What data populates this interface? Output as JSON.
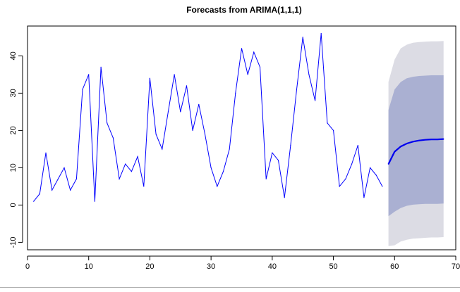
{
  "chart_data": {
    "type": "line",
    "title": "Forecasts from ARIMA(1,1,1)",
    "xlabel": "",
    "ylabel": "",
    "xlim": [
      0,
      70
    ],
    "ylim": [
      -12,
      48
    ],
    "x_ticks": [
      0,
      10,
      20,
      30,
      40,
      50,
      60,
      70
    ],
    "y_ticks": [
      -10,
      0,
      10,
      20,
      30,
      40
    ],
    "grid": false,
    "legend": "none",
    "colors": {
      "observed": "#0000ff",
      "forecast": "#0000ee",
      "band_95": "#dcdce4",
      "band_80": "#aab0d2"
    },
    "series": [
      {
        "x": [
          1,
          2,
          3,
          4,
          5,
          6,
          7,
          8,
          9,
          10,
          11,
          12,
          13,
          14,
          15,
          16,
          17,
          18,
          19,
          20,
          21,
          22,
          23,
          24,
          25,
          26,
          27,
          28,
          29,
          30,
          31,
          32,
          33,
          34,
          35,
          36,
          37,
          38,
          39,
          40,
          41,
          42,
          43,
          44,
          45,
          46,
          47,
          48,
          49,
          50,
          51,
          52,
          53,
          54,
          55,
          56,
          57,
          58
        ],
        "values": [
          1,
          3,
          14,
          4,
          7,
          10,
          4,
          7,
          31,
          35,
          1,
          37,
          22,
          18,
          7,
          11,
          9,
          13,
          5,
          34,
          19,
          15,
          25,
          35,
          25,
          32,
          20,
          27,
          19,
          10,
          5,
          9,
          15,
          30,
          42,
          35,
          41,
          37,
          7,
          14,
          12,
          2,
          16,
          31,
          45,
          35,
          28,
          46,
          22,
          20,
          5,
          7,
          11,
          16,
          2,
          10,
          8,
          5
        ]
      },
      {
        "name": "forecast",
        "x": [
          59,
          60,
          61,
          62,
          63,
          64,
          65,
          66,
          67,
          68
        ],
        "values": [
          11,
          14.3,
          15.7,
          16.5,
          17.0,
          17.3,
          17.5,
          17.6,
          17.6,
          17.7
        ],
        "lo80": [
          -3,
          -1.8,
          -0.8,
          -0.2,
          0.1,
          0.2,
          0.3,
          0.3,
          0.3,
          0.4
        ],
        "hi80": [
          25.5,
          31.0,
          33.0,
          34.0,
          34.4,
          34.6,
          34.7,
          34.8,
          34.8,
          34.8
        ],
        "lo95": [
          -11,
          -10.8,
          -9.8,
          -9.3,
          -9.0,
          -8.9,
          -8.8,
          -8.7,
          -8.7,
          -8.6
        ],
        "hi95": [
          33,
          39,
          42,
          43,
          43.5,
          43.7,
          43.8,
          43.9,
          43.9,
          44.0
        ]
      }
    ]
  }
}
